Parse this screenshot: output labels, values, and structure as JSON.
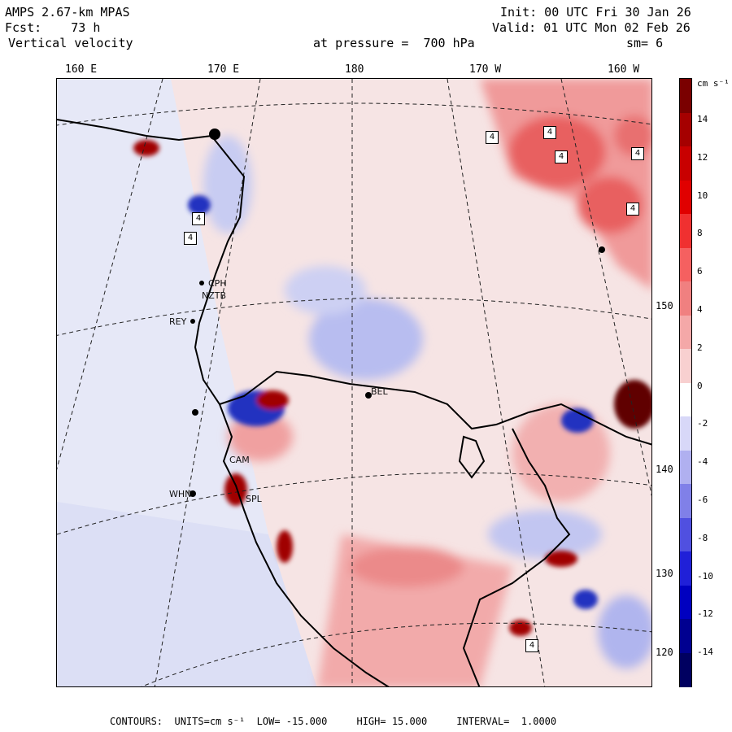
{
  "header": {
    "model": "AMPS 2.67-km MPAS",
    "fcst_label": "Fcst:",
    "fcst_value": "73 h",
    "field": "Vertical velocity",
    "init": "Init: 00 UTC Fri 30 Jan 26",
    "valid": "Valid: 01 UTC Mon 02 Feb 26",
    "pressure": "at pressure =  700 hPa",
    "smoothing": "sm= 6"
  },
  "longitudes": [
    "160 E",
    "170 E",
    "180",
    "170 W",
    "160 W"
  ],
  "latitudes": [
    "150 W",
    "140 W",
    "130 W",
    "120 W"
  ],
  "colorbar": {
    "units": "cm s⁻¹",
    "labels": [
      "14",
      "12",
      "10",
      "8",
      "6",
      "4",
      "2",
      "0",
      "-2",
      "-4",
      "-6",
      "-8",
      "-10",
      "-12",
      "-14"
    ],
    "colors": [
      "#7a0000",
      "#a50000",
      "#c80000",
      "#e00000",
      "#f03030",
      "#f56060",
      "#f08080",
      "#f4a8a8",
      "#f8d0d0",
      "#ffffff",
      "#d8d8f8",
      "#b0b0f0",
      "#8080e8",
      "#5050e0",
      "#2020d8",
      "#0000c0",
      "#000090",
      "#000060"
    ]
  },
  "stations": [
    "CPH",
    "NZTB",
    "REY",
    "WHN",
    "BEL",
    "CAM",
    "SPL"
  ],
  "markers": [
    "4",
    "4",
    "4",
    "4",
    "4",
    "4",
    "4",
    "4"
  ],
  "footer": {
    "contours_label": "CONTOURS:",
    "units": "UNITS=cm s⁻¹",
    "low": "LOW= -15.000",
    "high": "HIGH= 15.000",
    "interval": "INTERVAL=  1.0000"
  },
  "colors": {
    "positive": "#e05050",
    "negative": "#4050e0",
    "background": "#f8e6e6"
  }
}
